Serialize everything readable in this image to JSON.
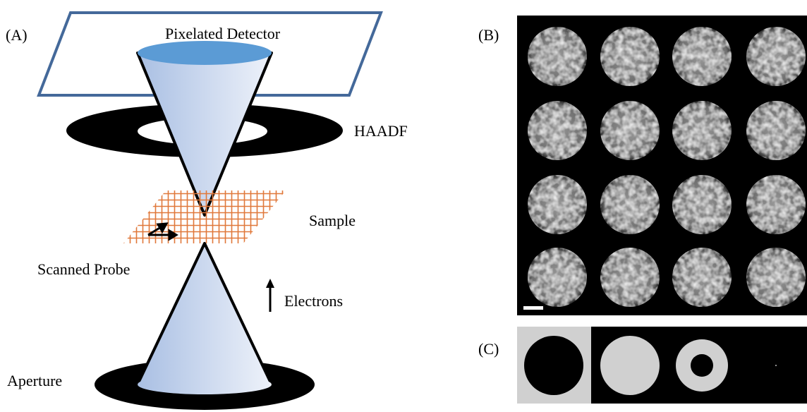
{
  "panels": [
    "(A)",
    "(B)",
    "(C)"
  ],
  "labels": {
    "detector": "Pixelated Detector",
    "haadf": "HAADF",
    "sample": "Sample",
    "probe": "Scanned Probe",
    "electrons": "Electrons",
    "aperture": "Aperture"
  }
}
